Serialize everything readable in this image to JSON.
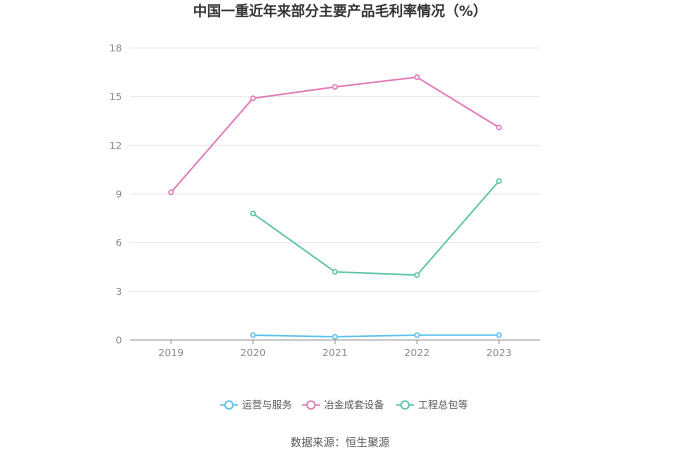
{
  "chart_data": {
    "type": "line",
    "title": "中国一重近年来部分主要产品毛利率情况（%）",
    "xlabel": "",
    "ylabel": "",
    "x": [
      "2019",
      "2020",
      "2021",
      "2022",
      "2023"
    ],
    "ylim": [
      0,
      18
    ],
    "yticks": [
      "0",
      "3",
      "6",
      "9",
      "12",
      "15",
      "18"
    ],
    "grid": true,
    "legend_position": "bottom",
    "series": [
      {
        "name": "运营与服务",
        "color": "#5bc0eb",
        "values": [
          null,
          0.3,
          0.2,
          0.3,
          0.3
        ]
      },
      {
        "name": "冶金成套设备",
        "color": "#e07ab8",
        "values": [
          9.1,
          14.9,
          15.6,
          16.2,
          13.1
        ]
      },
      {
        "name": "工程总包等",
        "color": "#5cc4a8",
        "values": [
          null,
          7.8,
          4.2,
          4.0,
          9.8
        ]
      }
    ]
  },
  "source_text": "数据来源：恒生聚源"
}
